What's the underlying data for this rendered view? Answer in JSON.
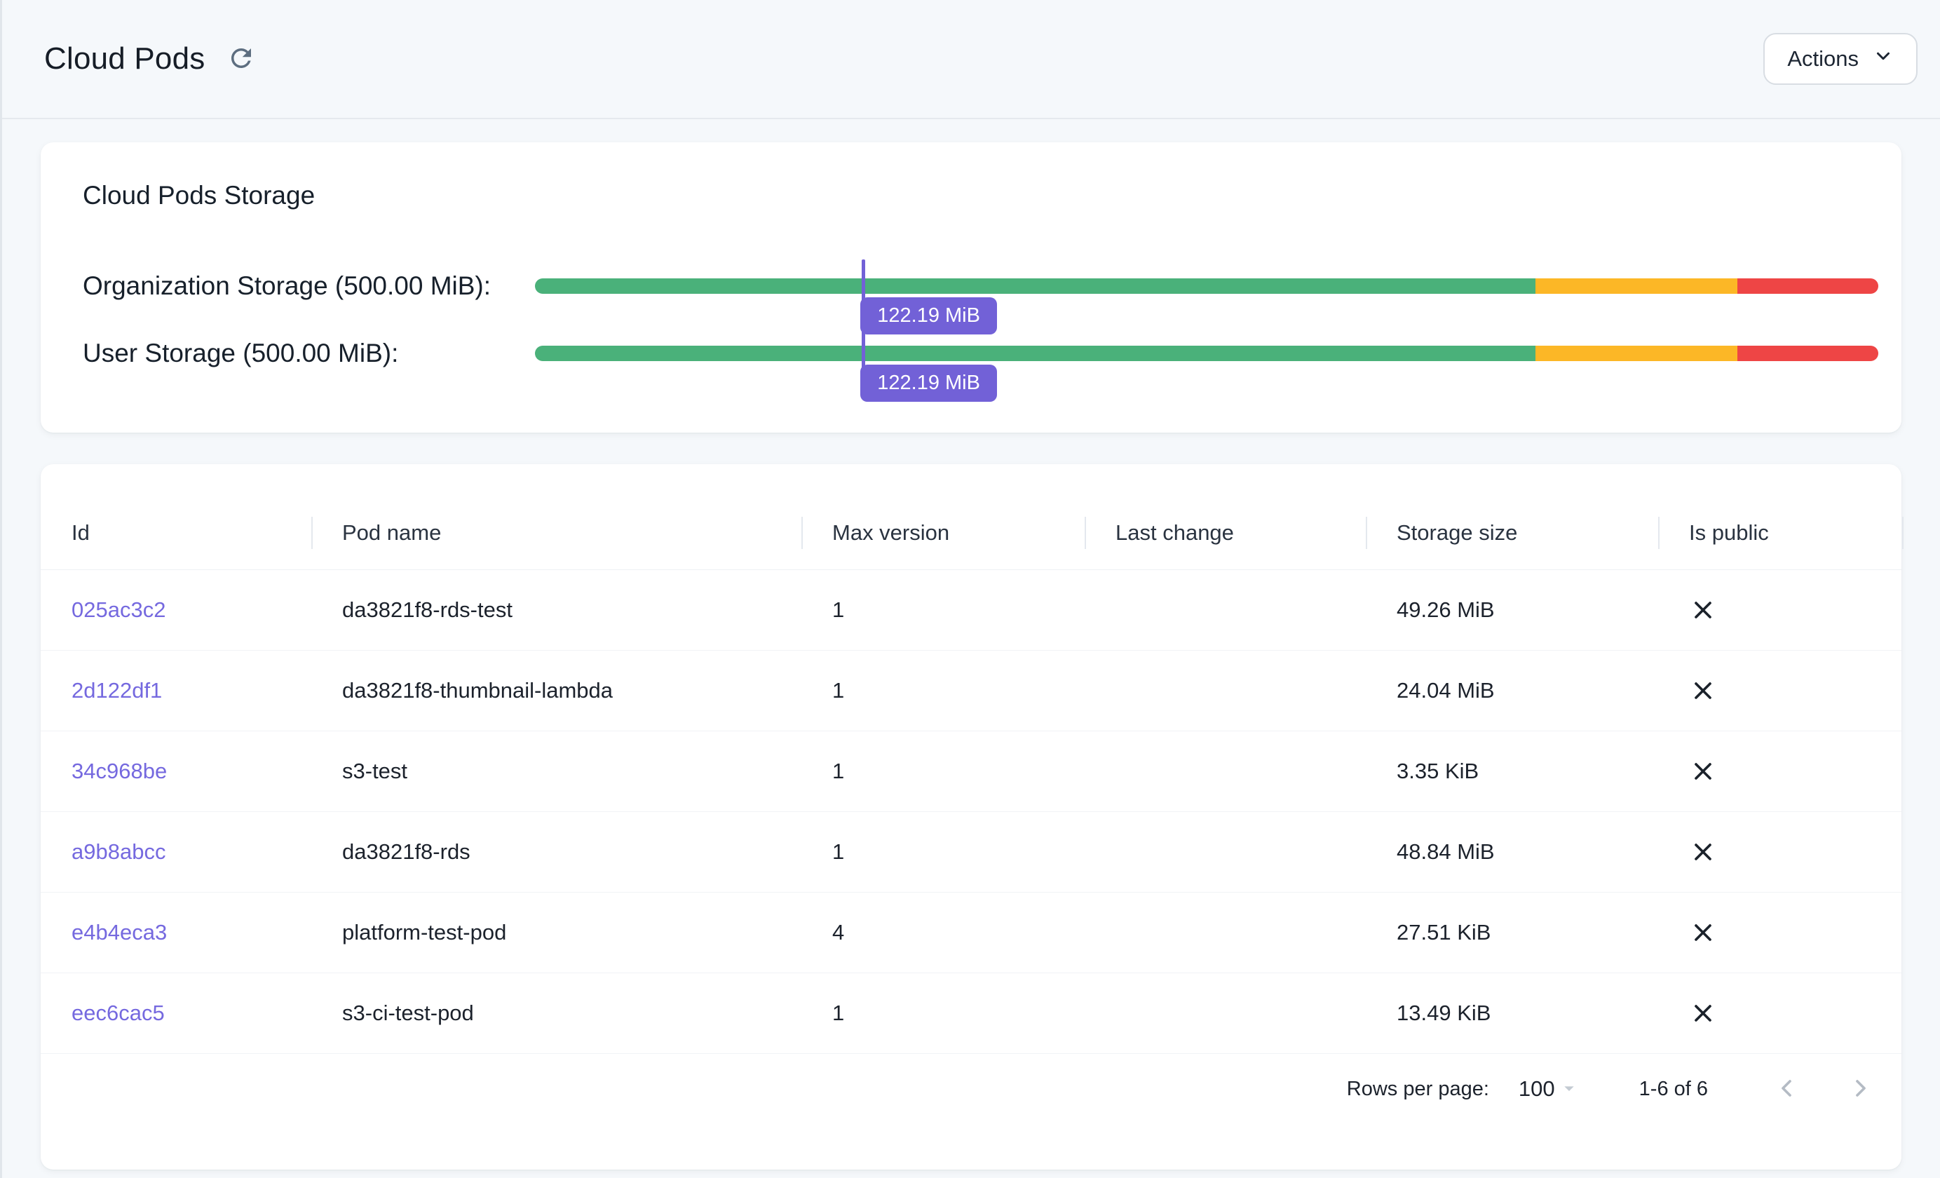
{
  "header": {
    "title": "Cloud Pods",
    "actions_label": "Actions"
  },
  "storage": {
    "title": "Cloud Pods Storage",
    "segments": {
      "green": 74.5,
      "amber": 15,
      "red": 10.5
    },
    "bars": [
      {
        "label": "Organization Storage (500.00 MiB):",
        "value": "122.19 MiB",
        "percent": 24.44
      },
      {
        "label": "User Storage (500.00 MiB):",
        "value": "122.19 MiB",
        "percent": 24.44
      }
    ]
  },
  "table": {
    "columns": {
      "id": "Id",
      "pod_name": "Pod name",
      "max_version": "Max version",
      "last_change": "Last change",
      "storage_size": "Storage size",
      "is_public": "Is public"
    },
    "rows": [
      {
        "id": "025ac3c2",
        "pod_name": "da3821f8-rds-test",
        "max_version": "1",
        "last_change": "",
        "storage_size": "49.26 MiB",
        "is_public": false
      },
      {
        "id": "2d122df1",
        "pod_name": "da3821f8-thumbnail-lambda",
        "max_version": "1",
        "last_change": "",
        "storage_size": "24.04 MiB",
        "is_public": false
      },
      {
        "id": "34c968be",
        "pod_name": "s3-test",
        "max_version": "1",
        "last_change": "",
        "storage_size": "3.35 KiB",
        "is_public": false
      },
      {
        "id": "a9b8abcc",
        "pod_name": "da3821f8-rds",
        "max_version": "1",
        "last_change": "",
        "storage_size": "48.84 MiB",
        "is_public": false
      },
      {
        "id": "e4b4eca3",
        "pod_name": "platform-test-pod",
        "max_version": "4",
        "last_change": "",
        "storage_size": "27.51 KiB",
        "is_public": false
      },
      {
        "id": "eec6cac5",
        "pod_name": "s3-ci-test-pod",
        "max_version": "1",
        "last_change": "",
        "storage_size": "13.49 KiB",
        "is_public": false
      }
    ],
    "footer": {
      "rows_per_page_label": "Rows per page:",
      "rows_per_page_value": "100",
      "range_label": "1-6 of 6"
    }
  },
  "colors": {
    "background": "#f5f8fb",
    "card": "#ffffff",
    "accent_purple": "#7261d7",
    "link_purple": "#7569df",
    "bar_green": "#4ab17a",
    "bar_amber": "#fcb726",
    "bar_red": "#ee4545",
    "text": "#1c222c",
    "disabled_icon": "#b4bbc4"
  }
}
